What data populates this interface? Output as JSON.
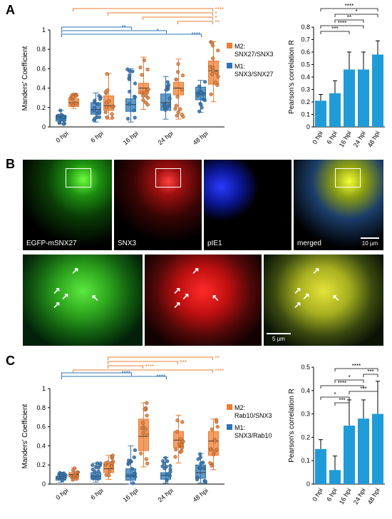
{
  "panels": {
    "a": "A",
    "b": "B",
    "c": "C"
  },
  "colors": {
    "orange": "#ed7d31",
    "blue": "#2e75b6",
    "darkblue": "#1f4e79",
    "bar": "#1f9cd8"
  },
  "chart_data": [
    {
      "type": "scatter",
      "panel": "A",
      "ylabel": "Manders' Coefficient",
      "categories": [
        "0 hpi",
        "6 hpi",
        "16 hpi",
        "24 hpi",
        "48 hpi"
      ],
      "ylim": [
        0,
        1
      ],
      "yticks": [
        "0",
        "0.2",
        "0.4",
        "0.6",
        "0.8",
        "1"
      ],
      "legend": [
        "M2:\nSNX27/SNX3",
        "M1:\nSNX3/SNX27"
      ],
      "series": [
        {
          "name": "M2: SNX27/SNX3",
          "color": "#ed7d31",
          "box": [
            [
              0.21,
              0.25,
              0.29,
              0.19,
              0.34
            ],
            [
              0.17,
              0.22,
              0.32,
              0.08,
              0.55
            ],
            [
              0.34,
              0.4,
              0.45,
              0.18,
              0.72
            ],
            [
              0.33,
              0.4,
              0.46,
              0.08,
              0.7
            ],
            [
              0.44,
              0.58,
              0.68,
              0.26,
              0.88
            ]
          ]
        },
        {
          "name": "M1: SNX3/SNX27",
          "color": "#2e75b6",
          "box": [
            [
              0.06,
              0.1,
              0.12,
              0.03,
              0.17
            ],
            [
              0.13,
              0.18,
              0.25,
              0.05,
              0.35
            ],
            [
              0.16,
              0.23,
              0.29,
              0.05,
              0.6
            ],
            [
              0.17,
              0.25,
              0.34,
              0.08,
              0.52
            ],
            [
              0.28,
              0.35,
              0.41,
              0.15,
              0.48
            ]
          ]
        }
      ],
      "significance_top": [
        "****",
        "*",
        "*",
        "**"
      ],
      "significance_bottom": [
        "**",
        "*",
        "****"
      ]
    },
    {
      "type": "bar",
      "panel": "A",
      "ylabel": "Pearson's correlation R",
      "categories": [
        "0 hpi",
        "6 hpi",
        "16 hpi",
        "24 hpi",
        "48 hpi"
      ],
      "values": [
        0.21,
        0.27,
        0.46,
        0.46,
        0.58
      ],
      "errors": [
        0.05,
        0.1,
        0.14,
        0.14,
        0.11
      ],
      "ylim": [
        0,
        0.8
      ],
      "yticks": [
        "0",
        "0.1",
        "0.2",
        "0.3",
        "0.4",
        "0.5",
        "0.6",
        "0.7",
        "0.8"
      ],
      "significance": [
        "****",
        "*",
        "**",
        "****",
        "***"
      ]
    },
    {
      "type": "scatter",
      "panel": "C",
      "ylabel": "Manders' Coefficient",
      "categories": [
        "0 hpi",
        "6 hpi",
        "16 hpi",
        "24 hpi",
        "48 hpi"
      ],
      "ylim": [
        0,
        1
      ],
      "yticks": [
        "0",
        "0.2",
        "0.4",
        "0.6",
        "0.8",
        "1"
      ],
      "legend": [
        "M2:\nRab10/SNX3",
        "M1:\nSNX3/Rab10"
      ],
      "series": [
        {
          "name": "M2: Rab10/SNX3",
          "color": "#ed7d31",
          "box": [
            [
              0.08,
              0.1,
              0.12,
              0.04,
              0.17
            ],
            [
              0.12,
              0.16,
              0.21,
              0.05,
              0.3
            ],
            [
              0.35,
              0.5,
              0.68,
              0.18,
              0.85
            ],
            [
              0.38,
              0.46,
              0.55,
              0.22,
              0.72
            ],
            [
              0.3,
              0.45,
              0.55,
              0.15,
              0.68
            ]
          ]
        },
        {
          "name": "M1: SNX3/Rab10",
          "color": "#2e75b6",
          "box": [
            [
              0.04,
              0.06,
              0.08,
              0.02,
              0.12
            ],
            [
              0.05,
              0.08,
              0.12,
              0.02,
              0.22
            ],
            [
              0.04,
              0.08,
              0.16,
              0.0,
              0.4
            ],
            [
              0.05,
              0.09,
              0.12,
              0.01,
              0.28
            ],
            [
              0.06,
              0.12,
              0.2,
              0.01,
              0.32
            ]
          ]
        }
      ],
      "significance_top": [
        "**",
        "***",
        "****",
        "****"
      ],
      "significance_bottom": [
        "****",
        "****"
      ]
    },
    {
      "type": "bar",
      "panel": "C",
      "ylabel": "Pearson's correlation R",
      "categories": [
        "0 hpi",
        "6 hpi",
        "16 hpi",
        "24 hpi",
        "48 hpi"
      ],
      "values": [
        0.15,
        0.06,
        0.25,
        0.28,
        0.3
      ],
      "errors": [
        0.04,
        0.06,
        0.11,
        0.08,
        0.14
      ],
      "ylim": [
        0,
        0.5
      ],
      "yticks": [
        "0",
        "0.1",
        "0.2",
        "0.3",
        "0.4",
        "0.5"
      ],
      "significance": [
        "****",
        "***",
        "*",
        "****",
        "***",
        "*",
        "***"
      ]
    }
  ],
  "micrographs": {
    "labels": [
      "EGFP-mSNX27",
      "SNX3",
      "pIE1",
      "merged"
    ],
    "scale_top": "10 µm",
    "scale_bottom": "5 µm"
  }
}
